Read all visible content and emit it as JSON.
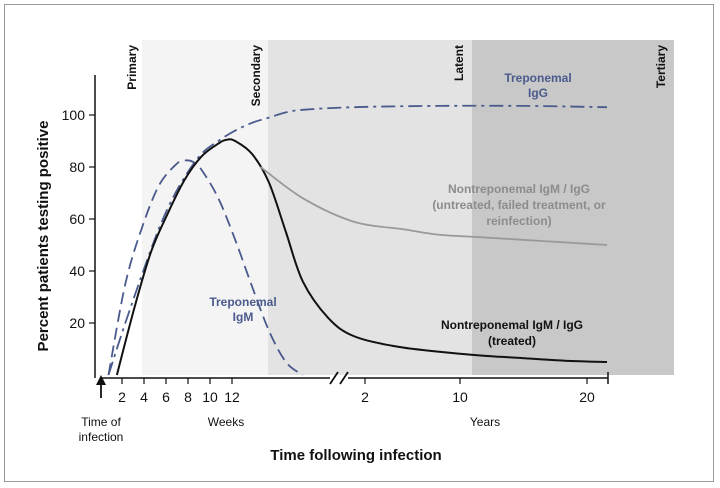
{
  "chart_data": {
    "type": "line",
    "title": "",
    "ylabel": "Percent patients testing positive",
    "xlabel": "Time following infection",
    "ylim": [
      0,
      100
    ],
    "y_ticks": [
      "20",
      "40",
      "60",
      "80",
      "100"
    ],
    "x_ticks_weeks": [
      "2",
      "4",
      "6",
      "8",
      "10",
      "12"
    ],
    "x_ticks_years": [
      "2",
      "10",
      "20"
    ],
    "x_unit_weeks": "Weeks",
    "x_unit_years": "Years",
    "origin_label": [
      "Time of",
      "infection"
    ],
    "phases": [
      {
        "label": "Primary",
        "shade": "#f4f4f4"
      },
      {
        "label": "Secondary",
        "shade": "#e3e3e3"
      },
      {
        "label": "Latent",
        "shade": "#e3e3e3"
      },
      {
        "label": "Tertiary",
        "shade": "#c8c8c8"
      }
    ],
    "series": [
      {
        "name_lines": [
          "Treponemal",
          "IgG"
        ],
        "color": "#4a5a8c",
        "style": "dash-dot",
        "points": [
          [
            1,
            0
          ],
          [
            3,
            20
          ],
          [
            6,
            48
          ],
          [
            8,
            64
          ],
          [
            10,
            76
          ],
          [
            12,
            85
          ],
          [
            14,
            90
          ],
          [
            16,
            94
          ],
          [
            18,
            97
          ],
          [
            20,
            99
          ],
          [
            22,
            101
          ],
          [
            24,
            102
          ],
          [
            30,
            103
          ],
          [
            40,
            103.5
          ],
          [
            50,
            103.5
          ],
          [
            60,
            103
          ]
        ]
      },
      {
        "name_lines": [
          "Treponemal",
          "IgM"
        ],
        "color": "#4a5a8c",
        "style": "dashed",
        "points": [
          [
            1,
            0
          ],
          [
            3,
            35
          ],
          [
            5,
            57
          ],
          [
            7,
            73
          ],
          [
            9,
            81
          ],
          [
            10,
            82.5
          ],
          [
            11,
            82
          ],
          [
            12,
            79
          ],
          [
            14,
            68
          ],
          [
            16,
            52
          ],
          [
            18,
            34
          ],
          [
            20,
            17
          ],
          [
            22,
            5
          ],
          [
            24,
            0
          ]
        ]
      },
      {
        "name_lines": [
          "Nontreponemal IgM / IgG",
          "(treated)"
        ],
        "color": "#111111",
        "style": "solid",
        "points": [
          [
            2,
            0
          ],
          [
            4,
            25
          ],
          [
            6,
            47
          ],
          [
            8,
            62
          ],
          [
            10,
            75
          ],
          [
            12,
            84
          ],
          [
            14,
            89
          ],
          [
            15,
            90.5
          ],
          [
            16,
            90
          ],
          [
            18,
            85
          ],
          [
            20,
            74
          ],
          [
            22,
            55
          ],
          [
            24,
            36
          ],
          [
            27,
            22
          ],
          [
            30,
            15
          ],
          [
            35,
            11
          ],
          [
            40,
            9
          ],
          [
            45,
            7.5
          ],
          [
            50,
            6.5
          ],
          [
            55,
            5.5
          ],
          [
            60,
            5
          ]
        ]
      },
      {
        "name_lines": [
          "Nontreponemal IgM / IgG",
          "(untreated, failed treatment, or",
          "reinfection)"
        ],
        "color": "#999999",
        "style": "solid",
        "points": [
          [
            19,
            80
          ],
          [
            24,
            68
          ],
          [
            30,
            59
          ],
          [
            36,
            56
          ],
          [
            40,
            54
          ],
          [
            45,
            53
          ],
          [
            50,
            52
          ],
          [
            55,
            51
          ],
          [
            60,
            50
          ]
        ]
      }
    ]
  }
}
